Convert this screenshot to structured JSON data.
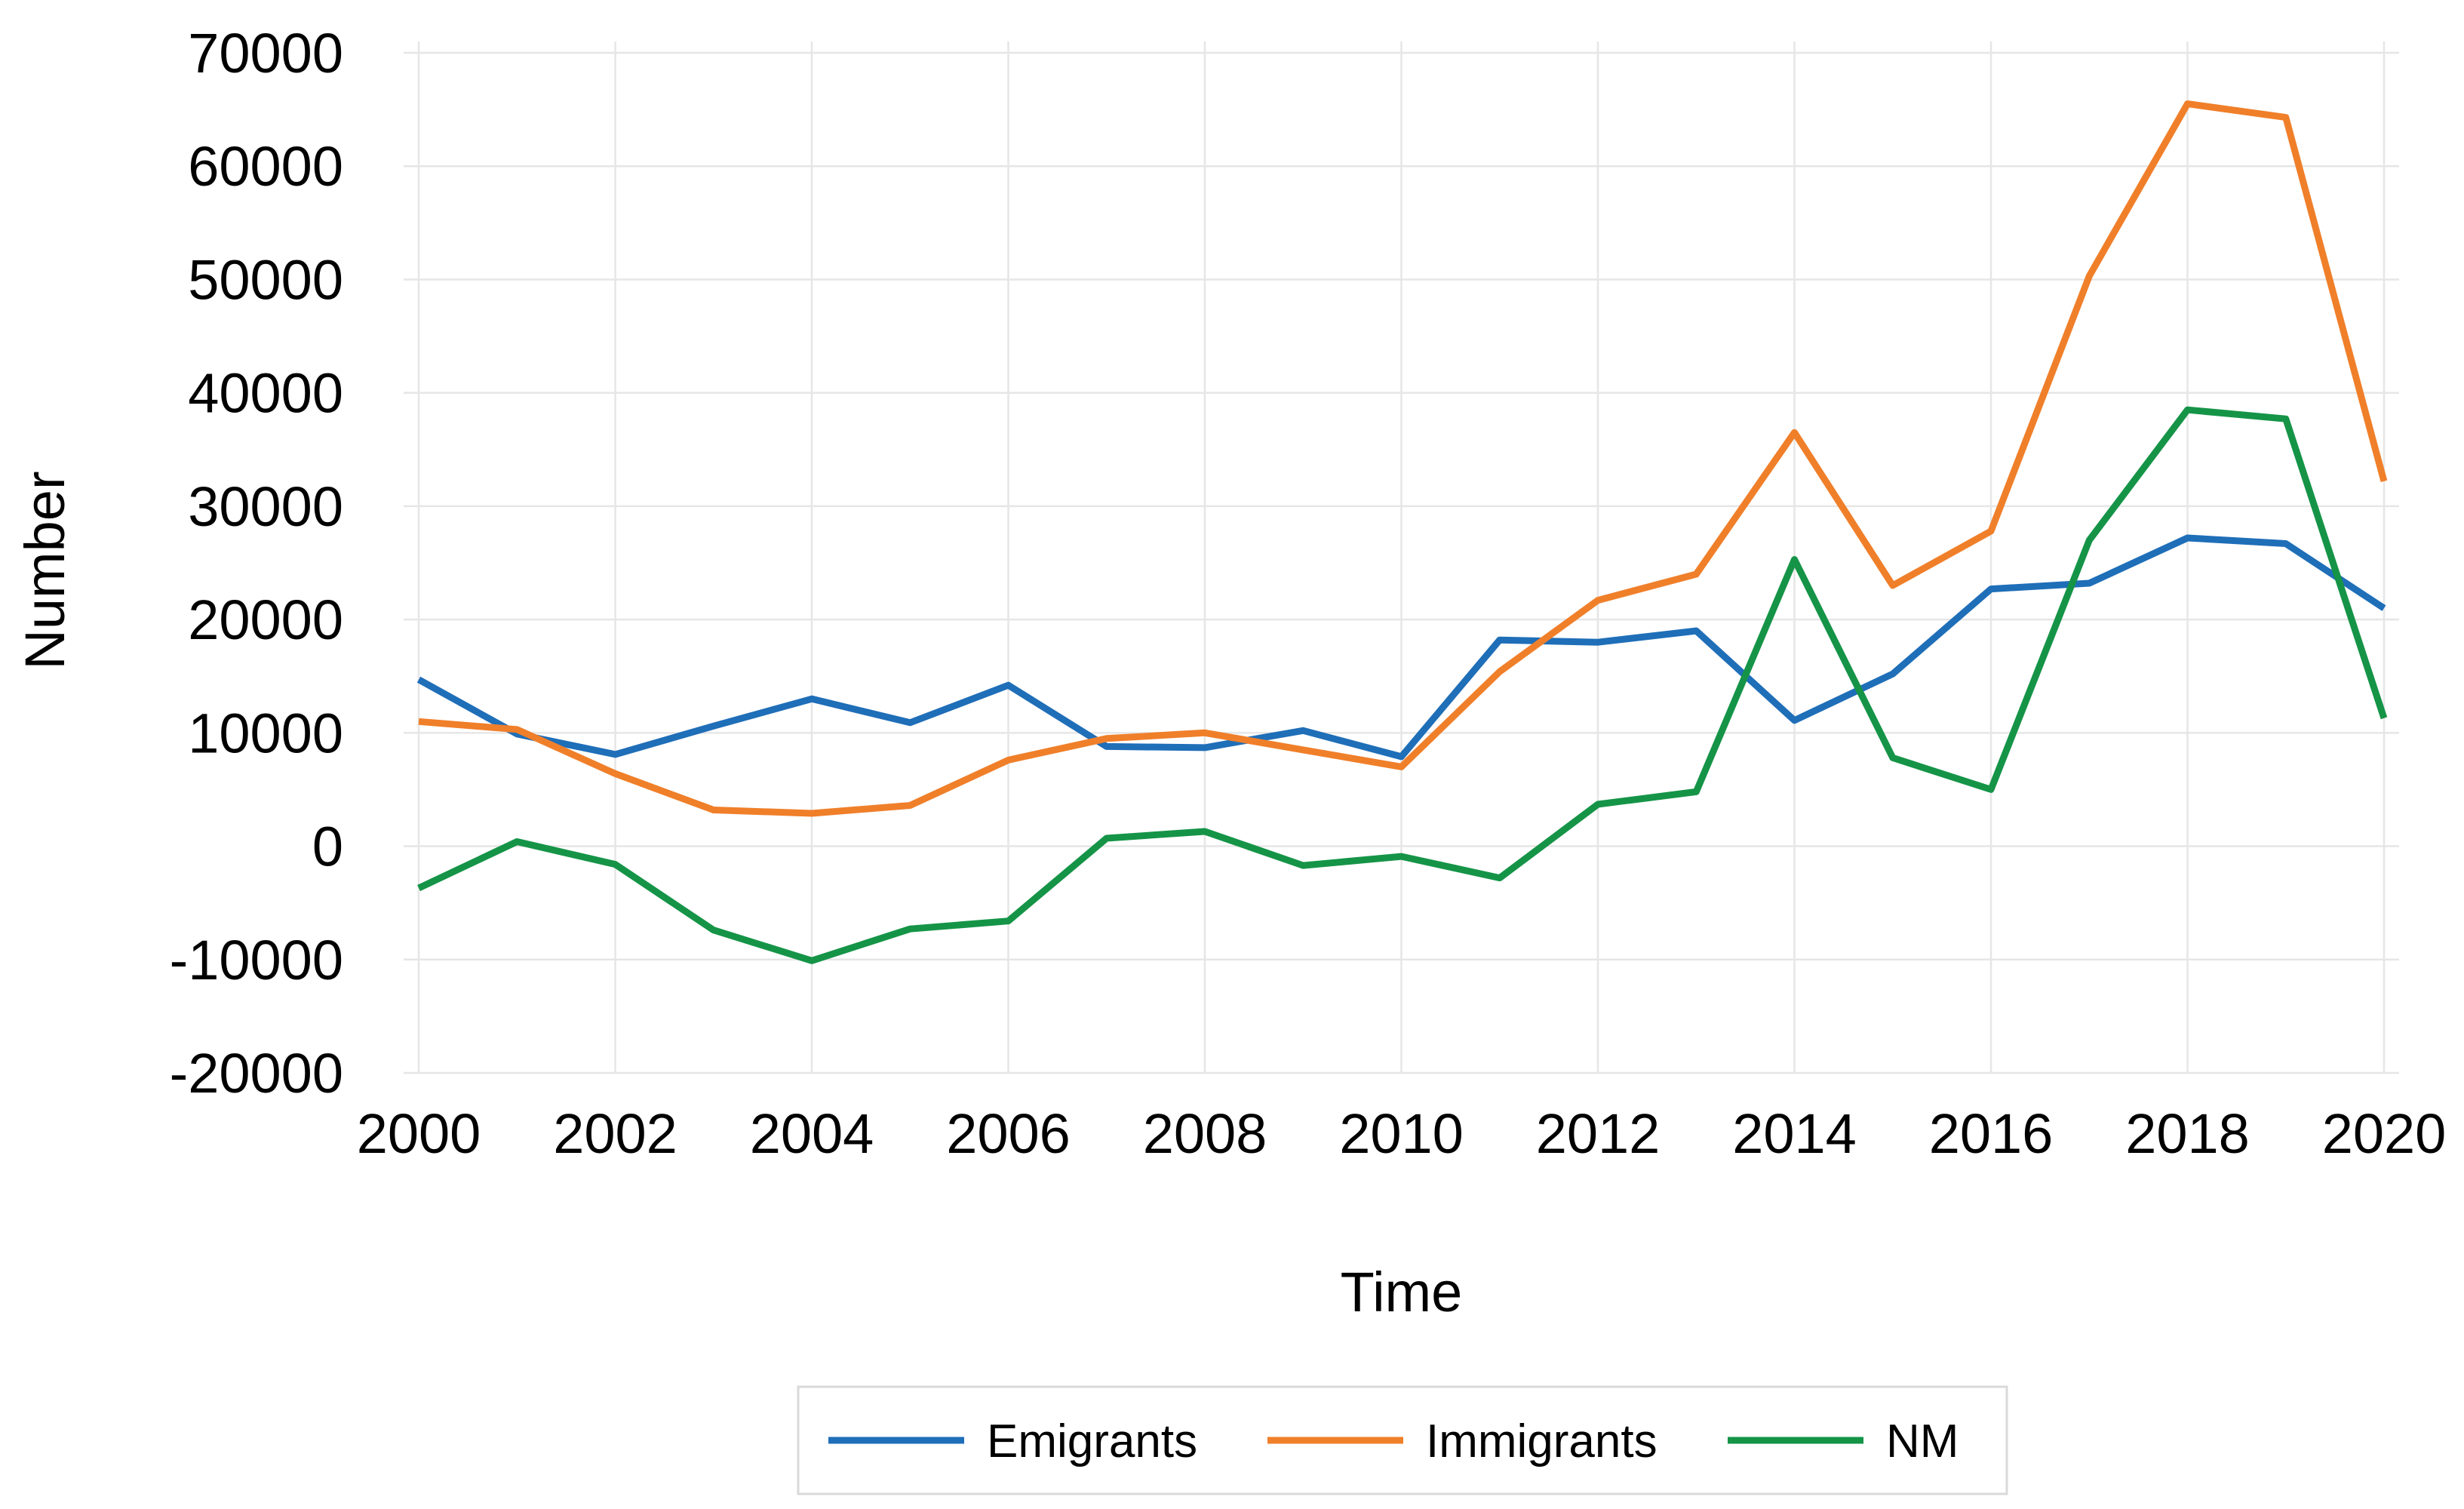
{
  "chart_data": {
    "type": "line",
    "title": "",
    "xlabel": "Time",
    "ylabel": "Number",
    "xlim": [
      2000,
      2020
    ],
    "ylim": [
      -20000,
      70000
    ],
    "x_ticks": [
      2000,
      2002,
      2004,
      2006,
      2008,
      2010,
      2012,
      2014,
      2016,
      2018,
      2020
    ],
    "x_tick_labels": [
      "2000",
      "2002",
      "2004",
      "2006",
      "2008",
      "2010",
      "2012",
      "2014",
      "2016",
      "2018",
      "2020"
    ],
    "y_ticks": [
      -20000,
      -10000,
      0,
      10000,
      20000,
      30000,
      40000,
      50000,
      60000,
      70000
    ],
    "y_tick_labels": [
      "-20000",
      "-10000",
      "0",
      "10000",
      "20000",
      "30000",
      "40000",
      "50000",
      "60000",
      "70000"
    ],
    "grid": true,
    "legend_position": "bottom",
    "x": [
      2000,
      2001,
      2002,
      2003,
      2004,
      2005,
      2006,
      2007,
      2008,
      2009,
      2010,
      2011,
      2012,
      2013,
      2014,
      2015,
      2016,
      2017,
      2018,
      2019,
      2020
    ],
    "series": [
      {
        "name": "Emigrants",
        "color": "#1f6eb8",
        "values": [
          14700,
          9900,
          8100,
          10600,
          13000,
          10900,
          14200,
          8800,
          8700,
          10200,
          7900,
          18200,
          18000,
          19000,
          11100,
          15200,
          22700,
          23200,
          27200,
          26700,
          21000
        ]
      },
      {
        "name": "Immigrants",
        "color": "#f07f2a",
        "values": [
          11000,
          10300,
          6400,
          3200,
          2900,
          3600,
          7600,
          9500,
          10000,
          8500,
          7000,
          15400,
          21700,
          24000,
          36500,
          23000,
          27800,
          50300,
          65500,
          64300,
          32200
        ]
      },
      {
        "name": "NM",
        "color": "#159447",
        "values": [
          -3700,
          400,
          -1600,
          -7400,
          -10100,
          -7300,
          -6600,
          700,
          1300,
          -1700,
          -900,
          -2800,
          3700,
          4800,
          25300,
          7800,
          5000,
          27000,
          38500,
          37700,
          11300
        ]
      }
    ]
  }
}
